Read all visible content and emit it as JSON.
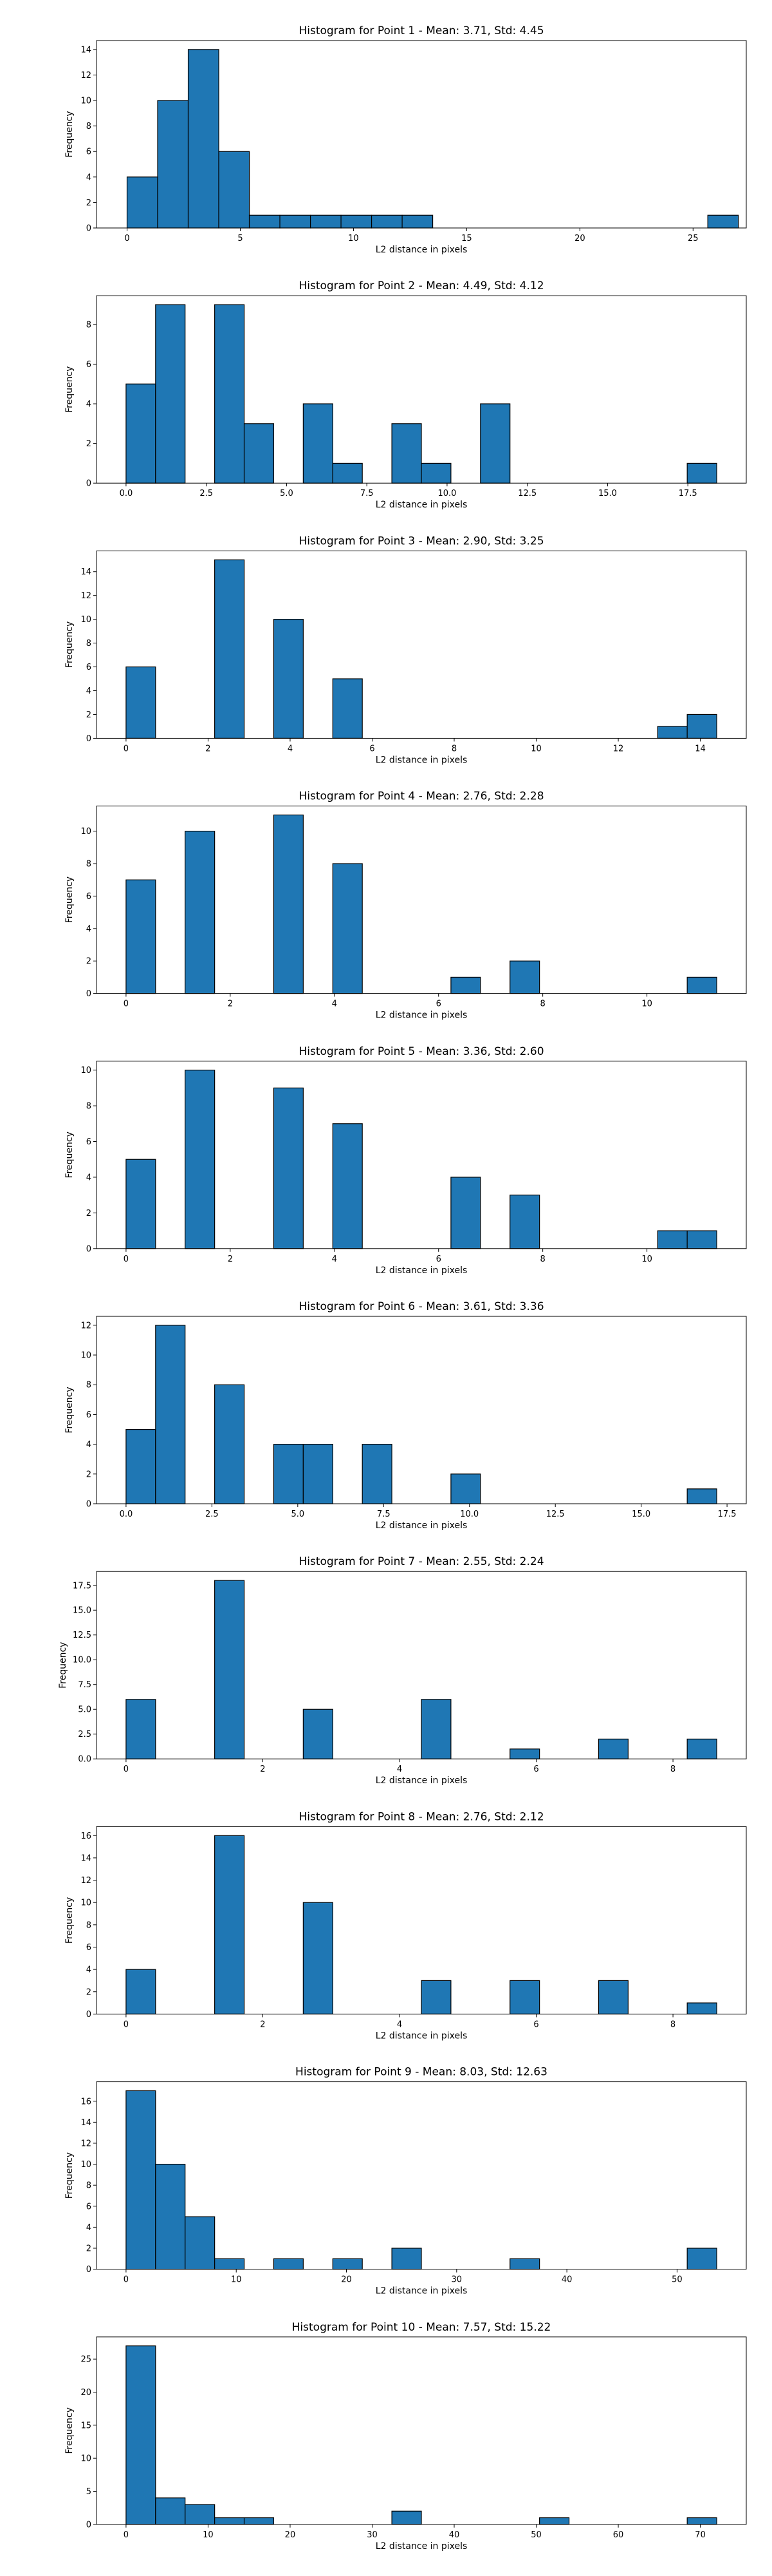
{
  "chart_data": [
    {
      "type": "bar",
      "title": "Histogram for Point 1 - Mean: 3.71, Std: 4.45",
      "xlabel": "L2 distance in pixels",
      "ylabel": "Frequency",
      "xlim": [
        -1.35,
        27.35
      ],
      "ylim": [
        0,
        14.7
      ],
      "xticks": [
        0,
        5,
        10,
        15,
        20,
        25
      ],
      "xtick_labels": [
        "0",
        "5",
        "10",
        "15",
        "20",
        "25"
      ],
      "yticks": [
        0,
        2,
        4,
        6,
        8,
        10,
        12,
        14
      ],
      "ytick_labels": [
        "0",
        "2",
        "4",
        "6",
        "8",
        "10",
        "12",
        "14"
      ],
      "bin_start": 0,
      "bin_width": 1.35,
      "counts": [
        4,
        10,
        14,
        6,
        1,
        1,
        1,
        1,
        1,
        1,
        0,
        0,
        0,
        0,
        0,
        0,
        0,
        0,
        0,
        1
      ]
    },
    {
      "type": "bar",
      "title": "Histogram for Point 2 - Mean: 4.49, Std: 4.12",
      "xlabel": "L2 distance in pixels",
      "ylabel": "Frequency",
      "xlim": [
        -0.92,
        19.32
      ],
      "ylim": [
        0,
        9.45
      ],
      "xticks": [
        0,
        2.5,
        5,
        7.5,
        10,
        12.5,
        15,
        17.5
      ],
      "xtick_labels": [
        "0.0",
        "2.5",
        "5.0",
        "7.5",
        "10.0",
        "12.5",
        "15.0",
        "17.5"
      ],
      "yticks": [
        0,
        2,
        4,
        6,
        8
      ],
      "ytick_labels": [
        "0",
        "2",
        "4",
        "6",
        "8"
      ],
      "bin_start": 0,
      "bin_width": 0.92,
      "counts": [
        5,
        9,
        0,
        9,
        3,
        0,
        4,
        1,
        0,
        3,
        1,
        0,
        4,
        0,
        0,
        0,
        0,
        0,
        0,
        1
      ]
    },
    {
      "type": "bar",
      "title": "Histogram for Point 3 - Mean: 2.90, Std: 3.25",
      "xlabel": "L2 distance in pixels",
      "ylabel": "Frequency",
      "xlim": [
        -0.72,
        15.12
      ],
      "ylim": [
        0,
        15.75
      ],
      "xticks": [
        0,
        2,
        4,
        6,
        8,
        10,
        12,
        14
      ],
      "xtick_labels": [
        "0",
        "2",
        "4",
        "6",
        "8",
        "10",
        "12",
        "14"
      ],
      "yticks": [
        0,
        2,
        4,
        6,
        8,
        10,
        12,
        14
      ],
      "ytick_labels": [
        "0",
        "2",
        "4",
        "6",
        "8",
        "10",
        "12",
        "14"
      ],
      "bin_start": 0,
      "bin_width": 0.72,
      "counts": [
        6,
        0,
        0,
        15,
        0,
        10,
        0,
        5,
        0,
        0,
        0,
        0,
        0,
        0,
        0,
        0,
        0,
        0,
        1,
        2
      ]
    },
    {
      "type": "bar",
      "title": "Histogram for Point 4 - Mean: 2.76, Std: 2.28",
      "xlabel": "L2 distance in pixels",
      "ylabel": "Frequency",
      "xlim": [
        -0.567,
        11.907
      ],
      "ylim": [
        0,
        11.55
      ],
      "xticks": [
        0,
        2,
        4,
        6,
        8,
        10
      ],
      "xtick_labels": [
        "0",
        "2",
        "4",
        "6",
        "8",
        "10"
      ],
      "yticks": [
        0,
        2,
        4,
        6,
        8,
        10
      ],
      "ytick_labels": [
        "0",
        "2",
        "4",
        "6",
        "8",
        "10"
      ],
      "bin_start": 0,
      "bin_width": 0.567,
      "counts": [
        7,
        0,
        10,
        0,
        0,
        11,
        0,
        8,
        0,
        0,
        0,
        1,
        0,
        2,
        0,
        0,
        0,
        0,
        0,
        1
      ]
    },
    {
      "type": "bar",
      "title": "Histogram for Point 5 - Mean: 3.36, Std: 2.60",
      "xlabel": "L2 distance in pixels",
      "ylabel": "Frequency",
      "xlim": [
        -0.567,
        11.907
      ],
      "ylim": [
        0,
        10.5
      ],
      "xticks": [
        0,
        2,
        4,
        6,
        8,
        10
      ],
      "xtick_labels": [
        "0",
        "2",
        "4",
        "6",
        "8",
        "10"
      ],
      "yticks": [
        0,
        2,
        4,
        6,
        8,
        10
      ],
      "ytick_labels": [
        "0",
        "2",
        "4",
        "6",
        "8",
        "10"
      ],
      "bin_start": 0,
      "bin_width": 0.567,
      "counts": [
        5,
        0,
        10,
        0,
        0,
        9,
        0,
        7,
        0,
        0,
        0,
        4,
        0,
        3,
        0,
        0,
        0,
        0,
        1,
        1
      ]
    },
    {
      "type": "bar",
      "title": "Histogram for Point 6 - Mean: 3.61, Std: 3.36",
      "xlabel": "L2 distance in pixels",
      "ylabel": "Frequency",
      "xlim": [
        -0.86,
        18.06
      ],
      "ylim": [
        0,
        12.6
      ],
      "xticks": [
        0,
        2.5,
        5,
        7.5,
        10,
        12.5,
        15,
        17.5
      ],
      "xtick_labels": [
        "0.0",
        "2.5",
        "5.0",
        "7.5",
        "10.0",
        "12.5",
        "15.0",
        "17.5"
      ],
      "yticks": [
        0,
        2,
        4,
        6,
        8,
        10,
        12
      ],
      "ytick_labels": [
        "0",
        "2",
        "4",
        "6",
        "8",
        "10",
        "12"
      ],
      "bin_start": 0,
      "bin_width": 0.86,
      "counts": [
        5,
        12,
        0,
        8,
        0,
        4,
        4,
        0,
        4,
        0,
        0,
        2,
        0,
        0,
        0,
        0,
        0,
        0,
        0,
        1
      ]
    },
    {
      "type": "bar",
      "title": "Histogram for Point 7 - Mean: 2.55, Std: 2.24",
      "xlabel": "L2 distance in pixels",
      "ylabel": "Frequency",
      "xlim": [
        -0.432,
        9.072
      ],
      "ylim": [
        0,
        18.9
      ],
      "xticks": [
        0,
        2,
        4,
        6,
        8
      ],
      "xtick_labels": [
        "0",
        "2",
        "4",
        "6",
        "8"
      ],
      "yticks": [
        0,
        2.5,
        5,
        7.5,
        10,
        12.5,
        15,
        17.5
      ],
      "ytick_labels": [
        "0.0",
        "2.5",
        "5.0",
        "7.5",
        "10.0",
        "12.5",
        "15.0",
        "17.5"
      ],
      "bin_start": 0,
      "bin_width": 0.432,
      "counts": [
        6,
        0,
        0,
        18,
        0,
        0,
        5,
        0,
        0,
        0,
        6,
        0,
        0,
        1,
        0,
        0,
        2,
        0,
        0,
        2
      ]
    },
    {
      "type": "bar",
      "title": "Histogram for Point 8 - Mean: 2.76, Std: 2.12",
      "xlabel": "L2 distance in pixels",
      "ylabel": "Frequency",
      "xlim": [
        -0.432,
        9.072
      ],
      "ylim": [
        0,
        16.8
      ],
      "xticks": [
        0,
        2,
        4,
        6,
        8
      ],
      "xtick_labels": [
        "0",
        "2",
        "4",
        "6",
        "8"
      ],
      "yticks": [
        0,
        2,
        4,
        6,
        8,
        10,
        12,
        14,
        16
      ],
      "ytick_labels": [
        "0",
        "2",
        "4",
        "6",
        "8",
        "10",
        "12",
        "14",
        "16"
      ],
      "bin_start": 0,
      "bin_width": 0.432,
      "counts": [
        4,
        0,
        0,
        16,
        0,
        0,
        10,
        0,
        0,
        0,
        3,
        0,
        0,
        3,
        0,
        0,
        3,
        0,
        0,
        1
      ]
    },
    {
      "type": "bar",
      "title": "Histogram for Point 9 - Mean: 8.03, Std: 12.63",
      "xlabel": "L2 distance in pixels",
      "ylabel": "Frequency",
      "xlim": [
        -2.68,
        56.28
      ],
      "ylim": [
        0,
        17.85
      ],
      "xticks": [
        0,
        10,
        20,
        30,
        40,
        50
      ],
      "xtick_labels": [
        "0",
        "10",
        "20",
        "30",
        "40",
        "50"
      ],
      "yticks": [
        0,
        2,
        4,
        6,
        8,
        10,
        12,
        14,
        16
      ],
      "ytick_labels": [
        "0",
        "2",
        "4",
        "6",
        "8",
        "10",
        "12",
        "14",
        "16"
      ],
      "bin_start": 0,
      "bin_width": 2.68,
      "counts": [
        17,
        10,
        5,
        1,
        0,
        1,
        0,
        1,
        0,
        2,
        0,
        0,
        0,
        1,
        0,
        0,
        0,
        0,
        0,
        2
      ]
    },
    {
      "type": "bar",
      "title": "Histogram for Point 10 - Mean: 7.57, Std: 15.22",
      "xlabel": "L2 distance in pixels",
      "ylabel": "Frequency",
      "xlim": [
        -3.6,
        75.6
      ],
      "ylim": [
        0,
        28.35
      ],
      "xticks": [
        0,
        10,
        20,
        30,
        40,
        50,
        60,
        70
      ],
      "xtick_labels": [
        "0",
        "10",
        "20",
        "30",
        "40",
        "50",
        "60",
        "70"
      ],
      "yticks": [
        0,
        5,
        10,
        15,
        20,
        25
      ],
      "ytick_labels": [
        "0",
        "5",
        "10",
        "15",
        "20",
        "25"
      ],
      "bin_start": 0,
      "bin_width": 3.6,
      "counts": [
        27,
        4,
        3,
        1,
        1,
        0,
        0,
        0,
        0,
        2,
        0,
        0,
        0,
        0,
        1,
        0,
        0,
        0,
        0,
        1
      ]
    }
  ]
}
